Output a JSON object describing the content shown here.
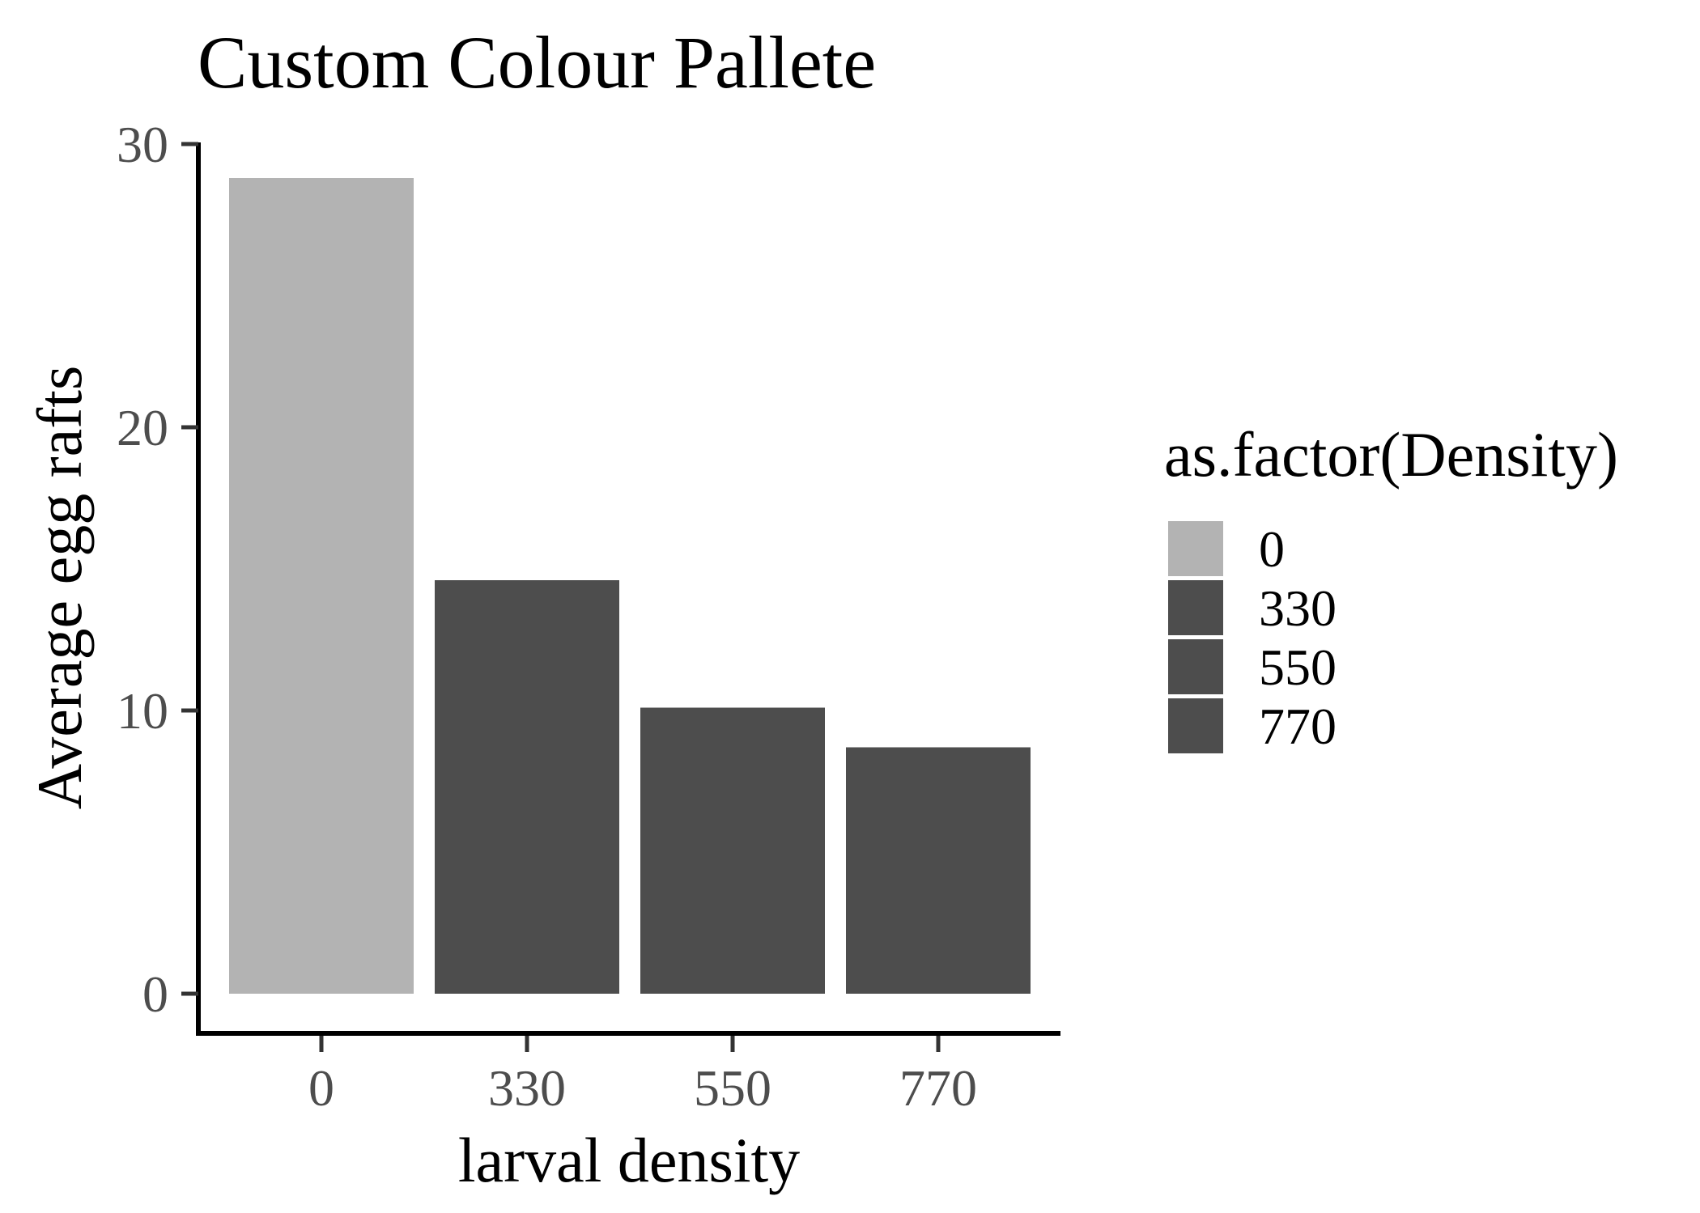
{
  "chart_data": {
    "type": "bar",
    "title": "Custom Colour Pallete",
    "xlabel": "larval density",
    "ylabel": "Average egg rafts",
    "categories": [
      "0",
      "330",
      "550",
      "770"
    ],
    "values": [
      28.8,
      14.6,
      10.1,
      8.7
    ],
    "colors": [
      "#b3b3b3",
      "#4d4d4d",
      "#4d4d4d",
      "#4d4d4d"
    ],
    "ylim": [
      0,
      30
    ],
    "yticks": [
      0,
      10,
      20,
      30
    ],
    "grid": false,
    "legend": {
      "title": "as.factor(Density)",
      "position": "right",
      "entries": [
        "0",
        "330",
        "550",
        "770"
      ]
    }
  }
}
